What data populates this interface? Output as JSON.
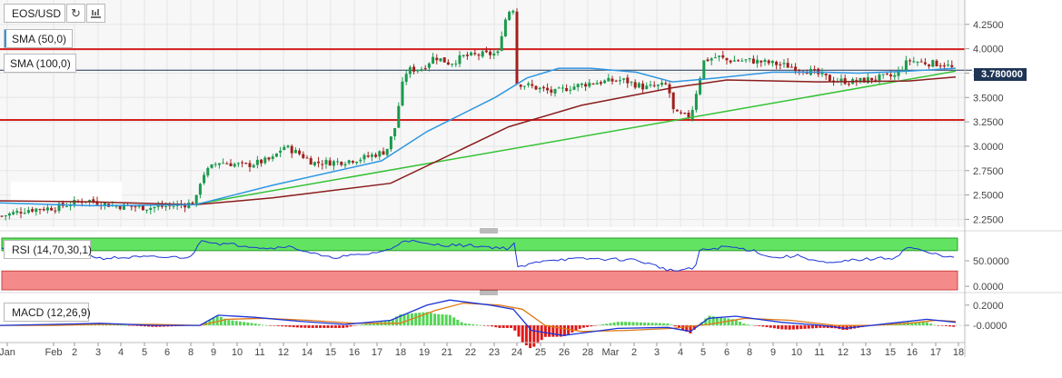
{
  "pair": "EOS/USD",
  "colors": {
    "bg": "#ffffff",
    "main_bg": "#f7f7f7",
    "up": "#1a9a4c",
    "down": "#a0201c",
    "sma50": "#2f97e3",
    "sma100": "#8b1d1d",
    "trend": "#35c235",
    "level": "#d42020",
    "hline": "#1f3556",
    "rsi_hi": "#62e462",
    "rsi_lo": "#f58a8a",
    "rsi_line": "#1c34d8",
    "macd": "#1c34d8",
    "signal": "#e07a16",
    "hist_pos": "#55d455",
    "hist_neg": "#e01818",
    "axis_text": "#444444",
    "grid": "#e6e6e6"
  },
  "legend": {
    "sma50": "SMA (50,0)",
    "sma100": "SMA (100,0)",
    "rsi": "RSI (14,70,30,1)",
    "macd": "MACD (12,26,9)"
  },
  "icons": [
    "refresh-icon",
    "indicators-icon"
  ],
  "current_price_label": "3.780000",
  "chart_data": [
    {
      "type": "candlestick",
      "title": "EOS/USD",
      "y_ticks": [
        "4.2500",
        "4.0000",
        "3.7500",
        "3.5000",
        "3.2500",
        "3.0000",
        "2.7500",
        "2.5000",
        "2.2500"
      ],
      "ylim": [
        2.17,
        4.5
      ],
      "x_tick_labels": [
        "Jan",
        "Feb",
        "2",
        "3",
        "4",
        "5",
        "6",
        "8",
        "9",
        "10",
        "11",
        "12",
        "14",
        "15",
        "16",
        "17",
        "18",
        "19",
        "21",
        "22",
        "23",
        "24",
        "25",
        "26",
        "28",
        "Mar",
        "2",
        "3",
        "4",
        "5",
        "6",
        "8",
        "9",
        "10",
        "11",
        "12",
        "13",
        "15",
        "16",
        "17",
        "18"
      ],
      "anchors": [
        [
          0,
          2.28
        ],
        [
          30,
          2.35
        ],
        [
          60,
          2.37
        ],
        [
          95,
          2.45
        ],
        [
          125,
          2.39
        ],
        [
          165,
          2.37
        ],
        [
          200,
          2.4
        ],
        [
          215,
          2.42
        ],
        [
          222,
          2.7
        ],
        [
          240,
          2.84
        ],
        [
          270,
          2.8
        ],
        [
          300,
          2.87
        ],
        [
          312,
          3.0
        ],
        [
          330,
          2.92
        ],
        [
          345,
          2.83
        ],
        [
          375,
          2.84
        ],
        [
          400,
          2.88
        ],
        [
          425,
          2.95
        ],
        [
          435,
          3.2
        ],
        [
          442,
          3.6
        ],
        [
          448,
          3.78
        ],
        [
          465,
          3.8
        ],
        [
          478,
          3.92
        ],
        [
          495,
          3.85
        ],
        [
          510,
          3.92
        ],
        [
          530,
          3.94
        ],
        [
          548,
          3.95
        ],
        [
          553,
          4.2
        ],
        [
          559,
          4.38
        ],
        [
          566,
          4.42
        ],
        [
          569,
          3.65
        ],
        [
          590,
          3.6
        ],
        [
          610,
          3.55
        ],
        [
          625,
          3.6
        ],
        [
          650,
          3.65
        ],
        [
          685,
          3.68
        ],
        [
          710,
          3.6
        ],
        [
          735,
          3.63
        ],
        [
          742,
          3.33
        ],
        [
          760,
          3.3
        ],
        [
          768,
          3.62
        ],
        [
          775,
          3.88
        ],
        [
          790,
          3.92
        ],
        [
          800,
          3.88
        ],
        [
          825,
          3.88
        ],
        [
          850,
          3.85
        ],
        [
          870,
          3.82
        ],
        [
          895,
          3.76
        ],
        [
          915,
          3.68
        ],
        [
          940,
          3.66
        ],
        [
          965,
          3.7
        ],
        [
          985,
          3.72
        ],
        [
          1000,
          3.88
        ],
        [
          1015,
          3.86
        ],
        [
          1040,
          3.84
        ],
        [
          1052,
          3.78
        ]
      ],
      "sma50": [
        [
          0,
          2.42
        ],
        [
          100,
          2.39
        ],
        [
          215,
          2.4
        ],
        [
          300,
          2.6
        ],
        [
          420,
          2.85
        ],
        [
          470,
          3.15
        ],
        [
          545,
          3.5
        ],
        [
          580,
          3.7
        ],
        [
          615,
          3.8
        ],
        [
          650,
          3.8
        ],
        [
          700,
          3.76
        ],
        [
          740,
          3.66
        ],
        [
          790,
          3.7
        ],
        [
          850,
          3.76
        ],
        [
          905,
          3.76
        ],
        [
          945,
          3.75
        ],
        [
          1000,
          3.77
        ],
        [
          1052,
          3.8
        ]
      ],
      "sma100": [
        [
          0,
          2.44
        ],
        [
          100,
          2.43
        ],
        [
          215,
          2.4
        ],
        [
          300,
          2.47
        ],
        [
          430,
          2.62
        ],
        [
          560,
          3.2
        ],
        [
          640,
          3.42
        ],
        [
          740,
          3.6
        ],
        [
          800,
          3.68
        ],
        [
          900,
          3.66
        ],
        [
          1000,
          3.67
        ],
        [
          1052,
          3.71
        ]
      ],
      "trendline": [
        [
          218,
          2.41
        ],
        [
          1052,
          3.77
        ]
      ],
      "levels": [
        3.995,
        3.27
      ],
      "current_price": 3.78,
      "grid": true
    },
    {
      "type": "line",
      "name": "RSI",
      "y_ticks": [
        "50.0000",
        "0.0000"
      ],
      "ylim": [
        0,
        100
      ],
      "bands": [
        70,
        30
      ],
      "anchors": [
        [
          0,
          80
        ],
        [
          10,
          70
        ],
        [
          50,
          60
        ],
        [
          90,
          66
        ],
        [
          110,
          55
        ],
        [
          150,
          57
        ],
        [
          210,
          57
        ],
        [
          222,
          92
        ],
        [
          240,
          84
        ],
        [
          270,
          80
        ],
        [
          300,
          74
        ],
        [
          312,
          80
        ],
        [
          335,
          70
        ],
        [
          360,
          56
        ],
        [
          400,
          62
        ],
        [
          430,
          72
        ],
        [
          445,
          92
        ],
        [
          470,
          82
        ],
        [
          520,
          80
        ],
        [
          560,
          74
        ],
        [
          566,
          85
        ],
        [
          570,
          36
        ],
        [
          600,
          52
        ],
        [
          650,
          54
        ],
        [
          700,
          52
        ],
        [
          740,
          30
        ],
        [
          765,
          35
        ],
        [
          770,
          70
        ],
        [
          800,
          78
        ],
        [
          830,
          70
        ],
        [
          850,
          56
        ],
        [
          880,
          60
        ],
        [
          900,
          49
        ],
        [
          915,
          44
        ],
        [
          940,
          52
        ],
        [
          985,
          56
        ],
        [
          1000,
          78
        ],
        [
          1020,
          66
        ],
        [
          1040,
          60
        ],
        [
          1052,
          54
        ]
      ]
    },
    {
      "type": "line",
      "name": "MACD",
      "y_ticks": [
        "0.2000",
        "-0.0000"
      ],
      "ylim": [
        -0.17,
        0.27
      ],
      "macd": [
        [
          0,
          0.0
        ],
        [
          60,
          0.01
        ],
        [
          110,
          0.02
        ],
        [
          170,
          0.0
        ],
        [
          220,
          0.0
        ],
        [
          240,
          0.1
        ],
        [
          280,
          0.08
        ],
        [
          330,
          0.04
        ],
        [
          380,
          0.01
        ],
        [
          430,
          0.05
        ],
        [
          470,
          0.2
        ],
        [
          495,
          0.25
        ],
        [
          540,
          0.2
        ],
        [
          565,
          0.16
        ],
        [
          585,
          -0.05
        ],
        [
          620,
          -0.1
        ],
        [
          680,
          -0.03
        ],
        [
          735,
          -0.02
        ],
        [
          760,
          -0.06
        ],
        [
          780,
          0.07
        ],
        [
          810,
          0.09
        ],
        [
          860,
          0.03
        ],
        [
          905,
          0.0
        ],
        [
          930,
          -0.03
        ],
        [
          990,
          0.03
        ],
        [
          1020,
          0.06
        ],
        [
          1052,
          0.03
        ]
      ],
      "signal": [
        [
          0,
          0.0
        ],
        [
          60,
          0.0
        ],
        [
          110,
          0.01
        ],
        [
          170,
          0.01
        ],
        [
          220,
          0.0
        ],
        [
          250,
          0.06
        ],
        [
          290,
          0.07
        ],
        [
          340,
          0.05
        ],
        [
          390,
          0.02
        ],
        [
          440,
          0.02
        ],
        [
          480,
          0.15
        ],
        [
          510,
          0.22
        ],
        [
          550,
          0.2
        ],
        [
          575,
          0.16
        ],
        [
          600,
          0.0
        ],
        [
          640,
          -0.06
        ],
        [
          690,
          -0.05
        ],
        [
          740,
          -0.03
        ],
        [
          780,
          0.01
        ],
        [
          820,
          0.07
        ],
        [
          870,
          0.05
        ],
        [
          920,
          0.0
        ],
        [
          960,
          0.0
        ],
        [
          1000,
          0.02
        ],
        [
          1030,
          0.05
        ],
        [
          1052,
          0.04
        ]
      ]
    }
  ]
}
